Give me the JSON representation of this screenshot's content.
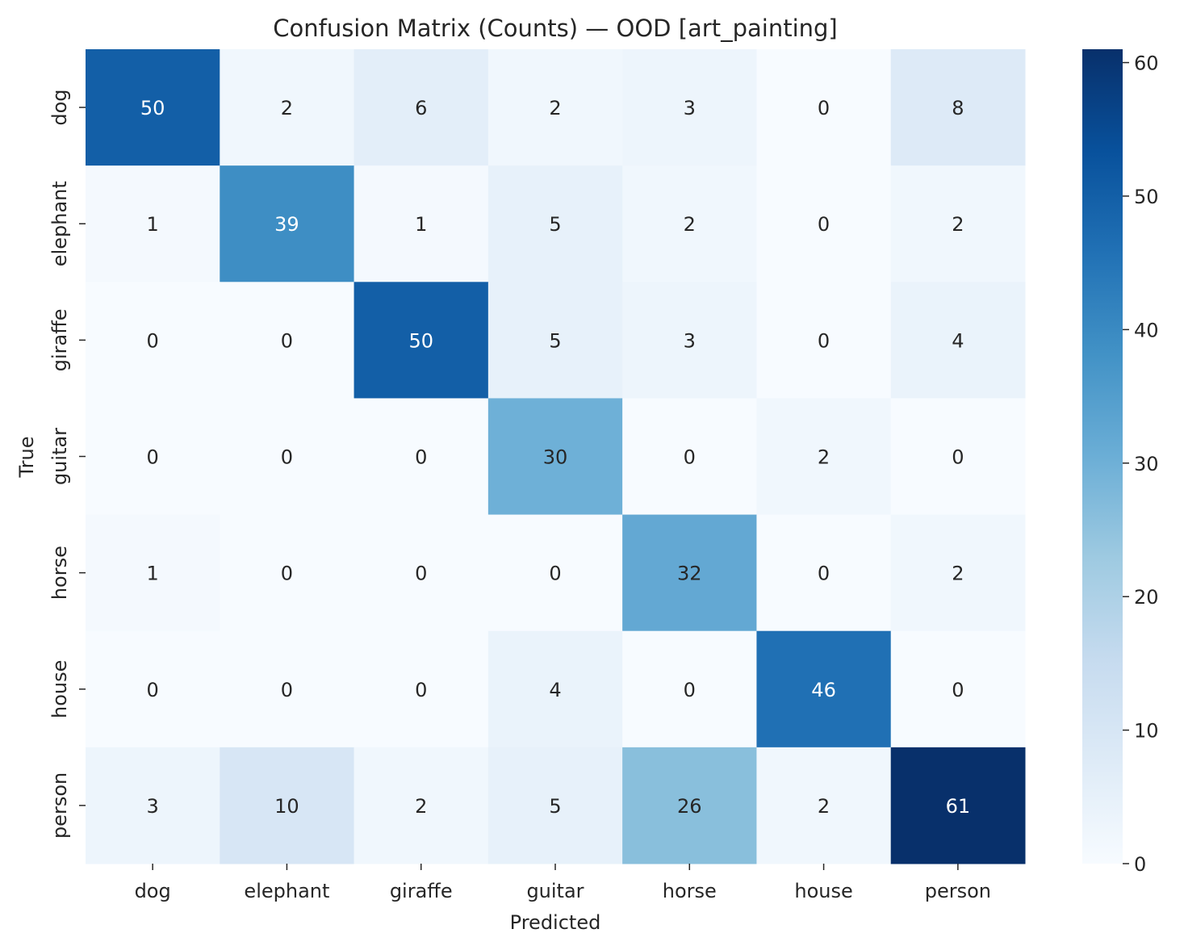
{
  "chart_data": {
    "type": "heatmap",
    "title": "Confusion Matrix (Counts) — OOD [art_painting]",
    "xlabel": "Predicted",
    "ylabel": "True",
    "x_categories": [
      "dog",
      "elephant",
      "giraffe",
      "guitar",
      "horse",
      "house",
      "person"
    ],
    "y_categories": [
      "dog",
      "elephant",
      "giraffe",
      "guitar",
      "horse",
      "house",
      "person"
    ],
    "values": [
      [
        50,
        2,
        6,
        2,
        3,
        0,
        8
      ],
      [
        1,
        39,
        1,
        5,
        2,
        0,
        2
      ],
      [
        0,
        0,
        50,
        5,
        3,
        0,
        4
      ],
      [
        0,
        0,
        0,
        30,
        0,
        2,
        0
      ],
      [
        1,
        0,
        0,
        0,
        32,
        0,
        2
      ],
      [
        0,
        0,
        0,
        4,
        0,
        46,
        0
      ],
      [
        3,
        10,
        2,
        5,
        26,
        2,
        61
      ]
    ],
    "colormap": "Blues",
    "color_range": [
      0,
      61
    ],
    "colorbar_ticks": [
      0,
      10,
      20,
      30,
      40,
      50,
      60
    ],
    "legend": "colorbar-right"
  }
}
